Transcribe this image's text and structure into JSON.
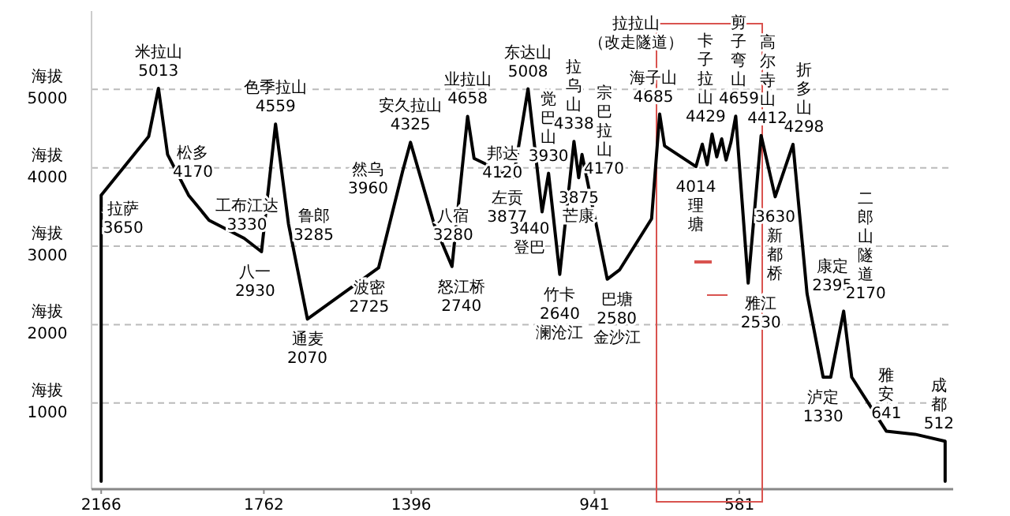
{
  "chart_data": {
    "type": "line",
    "x": [
      2166,
      2166,
      2048,
      2024,
      2001,
      1949,
      1898,
      1811,
      1768,
      1733,
      1701,
      1654,
      1477,
      1417,
      1398,
      1339,
      1295,
      1256,
      1240,
      1142,
      1106,
      1071,
      1055,
      1027,
      992,
      980,
      972,
      909,
      878,
      799,
      779,
      767,
      689,
      673,
      661,
      649,
      637,
      625,
      614,
      602,
      590,
      559,
      527,
      492,
      448,
      413,
      373,
      354,
      322,
      302,
      216,
      145,
      70,
      70
    ],
    "series": [
      {
        "color": "#000000",
        "values": [
          0,
          3650,
          4400,
          5013,
          4170,
          3650,
          3330,
          3100,
          2930,
          4559,
          3285,
          2070,
          2725,
          3960,
          4325,
          3280,
          2740,
          4658,
          4120,
          3877,
          5008,
          3440,
          3930,
          2640,
          4338,
          3875,
          4170,
          2580,
          2700,
          3350,
          4685,
          4280,
          4014,
          4300,
          4040,
          4429,
          4140,
          4370,
          4100,
          4330,
          4659,
          2530,
          4412,
          3630,
          4298,
          2395,
          1330,
          1330,
          2170,
          1330,
          641,
          600,
          512,
          0
        ],
        "value_labels": [
          null,
          "3650",
          null,
          "5013",
          "4170",
          null,
          "3330",
          null,
          "2930",
          "4559",
          "3285",
          "2070",
          "2725",
          "3960",
          "4325",
          "3280",
          "2740",
          "4658",
          "4120",
          "3877",
          "5008",
          "3440",
          "3930",
          "2640",
          "4338",
          "3875",
          "4170",
          "2580",
          null,
          null,
          "4685",
          null,
          "4014",
          null,
          null,
          "4429",
          null,
          null,
          null,
          null,
          "4659",
          "2530",
          "4412",
          "3630",
          "4298",
          "2395",
          "1330",
          null,
          "2170",
          null,
          "641",
          null,
          "512",
          null
        ]
      }
    ],
    "annotations": [
      {
        "text": "拉萨",
        "x": 2166,
        "y": 3650
      },
      {
        "text": "米拉山",
        "x": 2024,
        "y": 5013
      },
      {
        "text": "松多",
        "x": 2001,
        "y": 4170
      },
      {
        "text": "工布江达",
        "x": 1898,
        "y": 3330
      },
      {
        "text": "八一",
        "x": 1768,
        "y": 2930
      },
      {
        "text": "色季拉山",
        "x": 1733,
        "y": 4559
      },
      {
        "text": "鲁郎",
        "x": 1701,
        "y": 3285
      },
      {
        "text": "通麦",
        "x": 1654,
        "y": 2070
      },
      {
        "text": "波密",
        "x": 1477,
        "y": 2725
      },
      {
        "text": "然乌",
        "x": 1417,
        "y": 3960
      },
      {
        "text": "安久拉山",
        "x": 1398,
        "y": 4325
      },
      {
        "text": "八宿",
        "x": 1339,
        "y": 3280
      },
      {
        "text": "怒江桥",
        "x": 1295,
        "y": 2740
      },
      {
        "text": "业拉山",
        "x": 1256,
        "y": 4658
      },
      {
        "text": "邦达",
        "x": 1240,
        "y": 4120
      },
      {
        "text": "左贡",
        "x": 1142,
        "y": 3877
      },
      {
        "text": "东达山",
        "x": 1106,
        "y": 5008
      },
      {
        "text": "登巴",
        "x": 1071,
        "y": 3440
      },
      {
        "text": "觉巴山",
        "x": 1055,
        "y": 3930
      },
      {
        "text": "竹卡",
        "x": 1027,
        "y": 2640
      },
      "澜沧江",
      {
        "text": "拉乌山",
        "x": 992,
        "y": 4338
      },
      "芒康",
      {
        "text": "宗巴拉山",
        "x": 972,
        "y": 4170
      },
      {
        "text": "巴塘",
        "x": 909,
        "y": 2580
      },
      "金沙江",
      "拉拉山（改走隧道）",
      {
        "text": "海子山",
        "x": 779,
        "y": 4685
      },
      {
        "text": "理塘",
        "x": 689,
        "y": 4014
      },
      {
        "text": "卡子拉山",
        "x": 649,
        "y": 4429
      },
      {
        "text": "剪子弯山",
        "x": 590,
        "y": 4659
      },
      {
        "text": "雅江",
        "x": 559,
        "y": 2530
      },
      {
        "text": "高尔寺山",
        "x": 527,
        "y": 4412
      },
      {
        "text": "新都桥",
        "x": 492,
        "y": 3630
      },
      {
        "text": "折多山",
        "x": 448,
        "y": 4298
      },
      {
        "text": "康定",
        "x": 413,
        "y": 2395
      },
      {
        "text": "泸定",
        "x": 373,
        "y": 1330
      },
      {
        "text": "二郎山隧道",
        "x": 322,
        "y": 2170
      },
      {
        "text": "雅安",
        "x": 216,
        "y": 641
      },
      {
        "text": "成都",
        "x": 70,
        "y": 512
      }
    ],
    "xlim": [
      2190,
      50
    ],
    "xticks": [
      2166,
      1762,
      1396,
      941,
      581
    ],
    "ylim": [
      -100,
      6000
    ],
    "yticks": [
      1000,
      2000,
      3000,
      4000,
      5000
    ],
    "ylabel": "海拔",
    "grid": "y",
    "marker": "none",
    "line_style": "solid"
  }
}
